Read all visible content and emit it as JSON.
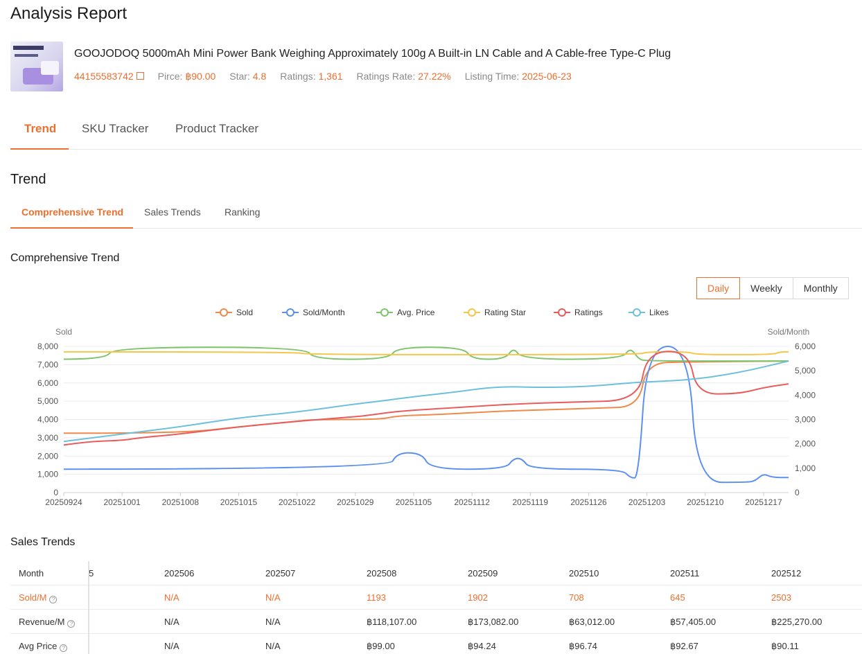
{
  "header": {
    "title": "Analysis Report"
  },
  "product": {
    "name": "GOOJODOQ 5000mAh Mini Power Bank Weighing Approximately 100g A Built-in LN Cable and A Cable-free Type-C Plug",
    "id": "44155583742",
    "price_label": "Pirce:",
    "price": "฿90.00",
    "star_label": "Star:",
    "star": "4.8",
    "ratings_label": "Ratings:",
    "ratings": "1,361",
    "rate_label": "Ratings Rate:",
    "rate": "27.22%",
    "listing_label": "Listing Time:",
    "listing": "2025-06-23"
  },
  "main_tabs": [
    {
      "label": "Trend"
    },
    {
      "label": "SKU Tracker"
    },
    {
      "label": "Product Tracker"
    }
  ],
  "section_title": "Trend",
  "sub_tabs": [
    {
      "label": "Comprehensive Trend"
    },
    {
      "label": "Sales Trends"
    },
    {
      "label": "Ranking"
    }
  ],
  "chart_section_title": "Comprehensive Trend",
  "granularity": [
    {
      "label": "Daily"
    },
    {
      "label": "Weekly"
    },
    {
      "label": "Monthly"
    }
  ],
  "colors": {
    "accent": "#f06e2d",
    "sold": "#f0894a",
    "sold_month": "#5b8ff0",
    "avg_price": "#7ec46a",
    "rating_star": "#f5c64a",
    "ratings": "#e85c5c",
    "likes": "#6cc0db"
  },
  "chart_data": {
    "type": "line",
    "legend": [
      "Sold",
      "Sold/Month",
      "Avg. Price",
      "Rating Star",
      "Ratings",
      "Likes"
    ],
    "legend_position": "top-center",
    "ylabel_left": "Sold",
    "ylabel_right": "Sold/Month",
    "ylim_left": [
      0,
      8000
    ],
    "ylim_right": [
      0,
      6000
    ],
    "yticks_left": [
      "0",
      "1,000",
      "2,000",
      "3,000",
      "4,000",
      "5,000",
      "6,000",
      "7,000",
      "8,000"
    ],
    "yticks_right": [
      "0",
      "1,000",
      "2,000",
      "3,000",
      "4,000",
      "5,000",
      "6,000"
    ],
    "xlim": [
      "20250924",
      "20251220"
    ],
    "xticks": [
      "20250924",
      "20251001",
      "20251008",
      "20251015",
      "20251022",
      "20251029",
      "20251105",
      "20251112",
      "20251119",
      "20251126",
      "20251203",
      "20251210",
      "20251217"
    ],
    "grid": true,
    "series": [
      {
        "name": "Sold",
        "axis": "left",
        "points": [
          [
            "20250924",
            3250
          ],
          [
            "20251008",
            3250
          ],
          [
            "20251015",
            3600
          ],
          [
            "20251022",
            3900
          ],
          [
            "20251024",
            4000
          ],
          [
            "20251101",
            4000
          ],
          [
            "20251103",
            4200
          ],
          [
            "20251108",
            4270
          ],
          [
            "20251115",
            4450
          ],
          [
            "20251120",
            4520
          ],
          [
            "20251127",
            4620
          ],
          [
            "20251202",
            4700
          ],
          [
            "20251203",
            7100
          ],
          [
            "20251208",
            7150
          ],
          [
            "20251220",
            7200
          ]
        ]
      },
      {
        "name": "Sold/Month",
        "axis": "right",
        "points": [
          [
            "20250924",
            960
          ],
          [
            "20251102",
            960
          ],
          [
            "20251103",
            1640
          ],
          [
            "20251106",
            1620
          ],
          [
            "20251107",
            960
          ],
          [
            "20251116",
            960
          ],
          [
            "20251117",
            1400
          ],
          [
            "20251118",
            1400
          ],
          [
            "20251119",
            960
          ],
          [
            "20251130",
            960
          ],
          [
            "20251201",
            600
          ],
          [
            "20251202",
            600
          ],
          [
            "20251203",
            6000
          ],
          [
            "20251208",
            6000
          ],
          [
            "20251209",
            420
          ],
          [
            "20251215",
            420
          ],
          [
            "20251216",
            480
          ],
          [
            "20251217",
            780
          ],
          [
            "20251218",
            620
          ],
          [
            "20251220",
            620
          ]
        ]
      },
      {
        "name": "Avg. Price",
        "axis": "left",
        "points": [
          [
            "20250924",
            7300
          ],
          [
            "20250929",
            7300
          ],
          [
            "20250930",
            7950
          ],
          [
            "20251023",
            7950
          ],
          [
            "20251024",
            7300
          ],
          [
            "20251102",
            7300
          ],
          [
            "20251103",
            7950
          ],
          [
            "20251111",
            7950
          ],
          [
            "20251112",
            7300
          ],
          [
            "20251116",
            7300
          ],
          [
            "20251117",
            7950
          ],
          [
            "20251118",
            7300
          ],
          [
            "20251130",
            7300
          ],
          [
            "20251201",
            7950
          ],
          [
            "20251202",
            7300
          ],
          [
            "20251203",
            7200
          ],
          [
            "20251220",
            7200
          ]
        ]
      },
      {
        "name": "Rating Star",
        "axis": "left",
        "points": [
          [
            "20250924",
            7700
          ],
          [
            "20251022",
            7700
          ],
          [
            "20251023",
            7550
          ],
          [
            "20251202",
            7550
          ],
          [
            "20251203",
            7700
          ],
          [
            "20251208",
            7700
          ],
          [
            "20251209",
            7550
          ],
          [
            "20251218",
            7550
          ],
          [
            "20251219",
            7700
          ],
          [
            "20251220",
            7700
          ]
        ]
      },
      {
        "name": "Ratings",
        "axis": "left",
        "points": [
          [
            "20250924",
            2600
          ],
          [
            "20250927",
            2800
          ],
          [
            "20251001",
            2850
          ],
          [
            "20251003",
            3000
          ],
          [
            "20251008",
            3200
          ],
          [
            "20251015",
            3600
          ],
          [
            "20251022",
            3900
          ],
          [
            "20251029",
            4150
          ],
          [
            "20251031",
            4250
          ],
          [
            "20251103",
            4450
          ],
          [
            "20251110",
            4650
          ],
          [
            "20251117",
            4850
          ],
          [
            "20251124",
            4950
          ],
          [
            "20251202",
            5050
          ],
          [
            "20251203",
            7700
          ],
          [
            "20251208",
            7750
          ],
          [
            "20251209",
            5400
          ],
          [
            "20251214",
            5400
          ],
          [
            "20251217",
            5750
          ],
          [
            "20251220",
            5950
          ]
        ]
      },
      {
        "name": "Likes",
        "axis": "left",
        "points": [
          [
            "20250924",
            2800
          ],
          [
            "20251001",
            3200
          ],
          [
            "20251008",
            3600
          ],
          [
            "20251015",
            4100
          ],
          [
            "20251022",
            4400
          ],
          [
            "20251029",
            4850
          ],
          [
            "20251101",
            5000
          ],
          [
            "20251105",
            5250
          ],
          [
            "20251110",
            5500
          ],
          [
            "20251114",
            5750
          ],
          [
            "20251117",
            5800
          ],
          [
            "20251120",
            5750
          ],
          [
            "20251126",
            5800
          ],
          [
            "20251202",
            6050
          ],
          [
            "20251208",
            6150
          ],
          [
            "20251214",
            6550
          ],
          [
            "20251220",
            7200
          ]
        ]
      }
    ]
  },
  "sales_section_title": "Sales Trends",
  "sales_table": {
    "header_label": "Month",
    "clipped_col": "5",
    "months": [
      "202506",
      "202507",
      "202508",
      "202509",
      "202510",
      "202511",
      "202512"
    ],
    "rows": [
      {
        "label": "Sold/M",
        "values": [
          "N/A",
          "N/A",
          "1193",
          "1902",
          "708",
          "645",
          "2503"
        ]
      },
      {
        "label": "Revenue/M",
        "values": [
          "N/A",
          "N/A",
          "฿118,107.00",
          "฿173,082.00",
          "฿63,012.00",
          "฿57,405.00",
          "฿225,270.00"
        ]
      },
      {
        "label": "Avg Price",
        "values": [
          "N/A",
          "N/A",
          "฿99.00",
          "฿94.24",
          "฿96.74",
          "฿92.67",
          "฿90.11"
        ]
      }
    ]
  }
}
